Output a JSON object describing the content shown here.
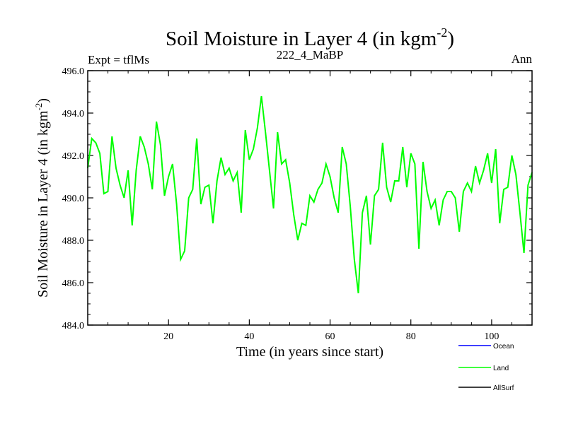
{
  "chart_data": {
    "type": "line",
    "title": {
      "main": "Soil Moisture in Layer 4 (in kgm",
      "sup": "-2",
      "close": ")"
    },
    "left_label": "Expt = tflMs",
    "center_label": "222_4_MaBP",
    "right_label": "Ann",
    "xlabel": "Time (in years since start)",
    "ylabel": {
      "main": "Soil Moisture in Layer 4 (in kgm",
      "sup": "-2",
      "close": ")"
    },
    "xlim": [
      0,
      110
    ],
    "ylim": [
      484.0,
      496.0
    ],
    "x_ticks": [
      20,
      40,
      60,
      80,
      100
    ],
    "x_tick_labels": [
      "20",
      "40",
      "60",
      "80",
      "100"
    ],
    "y_ticks": [
      484,
      486,
      488,
      490,
      492,
      494,
      496
    ],
    "y_tick_labels": [
      "484.0",
      "486.0",
      "488.0",
      "490.0",
      "492.0",
      "494.0",
      "496.0"
    ],
    "legend": [
      {
        "name": "Ocean",
        "color": "#0000ff"
      },
      {
        "name": "Land",
        "color": "#00ff00"
      },
      {
        "name": "AllSurf",
        "color": "#000000"
      }
    ],
    "series": [
      {
        "name": "Land",
        "color": "#00ff00",
        "x": [
          0,
          1,
          2,
          3,
          4,
          5,
          6,
          7,
          8,
          9,
          10,
          11,
          12,
          13,
          14,
          15,
          16,
          17,
          18,
          19,
          20,
          21,
          22,
          23,
          24,
          25,
          26,
          27,
          28,
          29,
          30,
          31,
          32,
          33,
          34,
          35,
          36,
          37,
          38,
          39,
          40,
          41,
          42,
          43,
          44,
          45,
          46,
          47,
          48,
          49,
          50,
          51,
          52,
          53,
          54,
          55,
          56,
          57,
          58,
          59,
          60,
          61,
          62,
          63,
          64,
          65,
          66,
          67,
          68,
          69,
          70,
          71,
          72,
          73,
          74,
          75,
          76,
          77,
          78,
          79,
          80,
          81,
          82,
          83,
          84,
          85,
          86,
          87,
          88,
          89,
          90,
          91,
          92,
          93,
          94,
          95,
          96,
          97,
          98,
          99,
          100,
          101,
          102,
          103,
          104,
          105,
          106,
          107,
          108,
          109,
          110
        ],
        "values": [
          491.4,
          492.8,
          492.6,
          492.1,
          490.2,
          490.3,
          492.9,
          491.4,
          490.6,
          490.0,
          491.3,
          488.7,
          491.3,
          492.9,
          492.4,
          491.6,
          490.4,
          493.6,
          492.5,
          490.1,
          491.0,
          491.6,
          489.7,
          487.1,
          487.5,
          490.0,
          490.4,
          492.8,
          489.7,
          490.5,
          490.6,
          488.8,
          490.8,
          491.9,
          491.1,
          491.4,
          490.8,
          491.2,
          489.3,
          493.2,
          491.8,
          492.3,
          493.3,
          494.8,
          493.1,
          491.3,
          489.5,
          493.1,
          491.6,
          491.8,
          490.7,
          489.2,
          488.0,
          488.8,
          488.7,
          490.1,
          489.8,
          490.4,
          490.7,
          491.6,
          491.0,
          490.0,
          489.3,
          492.4,
          491.6,
          489.6,
          487.1,
          485.5,
          489.3,
          490.1,
          487.8,
          490.1,
          490.4,
          492.6,
          490.5,
          489.8,
          490.8,
          490.8,
          492.4,
          490.5,
          492.1,
          491.6,
          487.6,
          491.7,
          490.3,
          489.5,
          489.9,
          488.7,
          489.9,
          490.3,
          490.3,
          490.0,
          488.4,
          490.3,
          490.7,
          490.3,
          491.5,
          490.7,
          491.3,
          492.1,
          490.7,
          492.3,
          488.8,
          490.4,
          490.5,
          492.0,
          491.1,
          489.3,
          487.4,
          490.6,
          491.2
        ]
      }
    ]
  }
}
